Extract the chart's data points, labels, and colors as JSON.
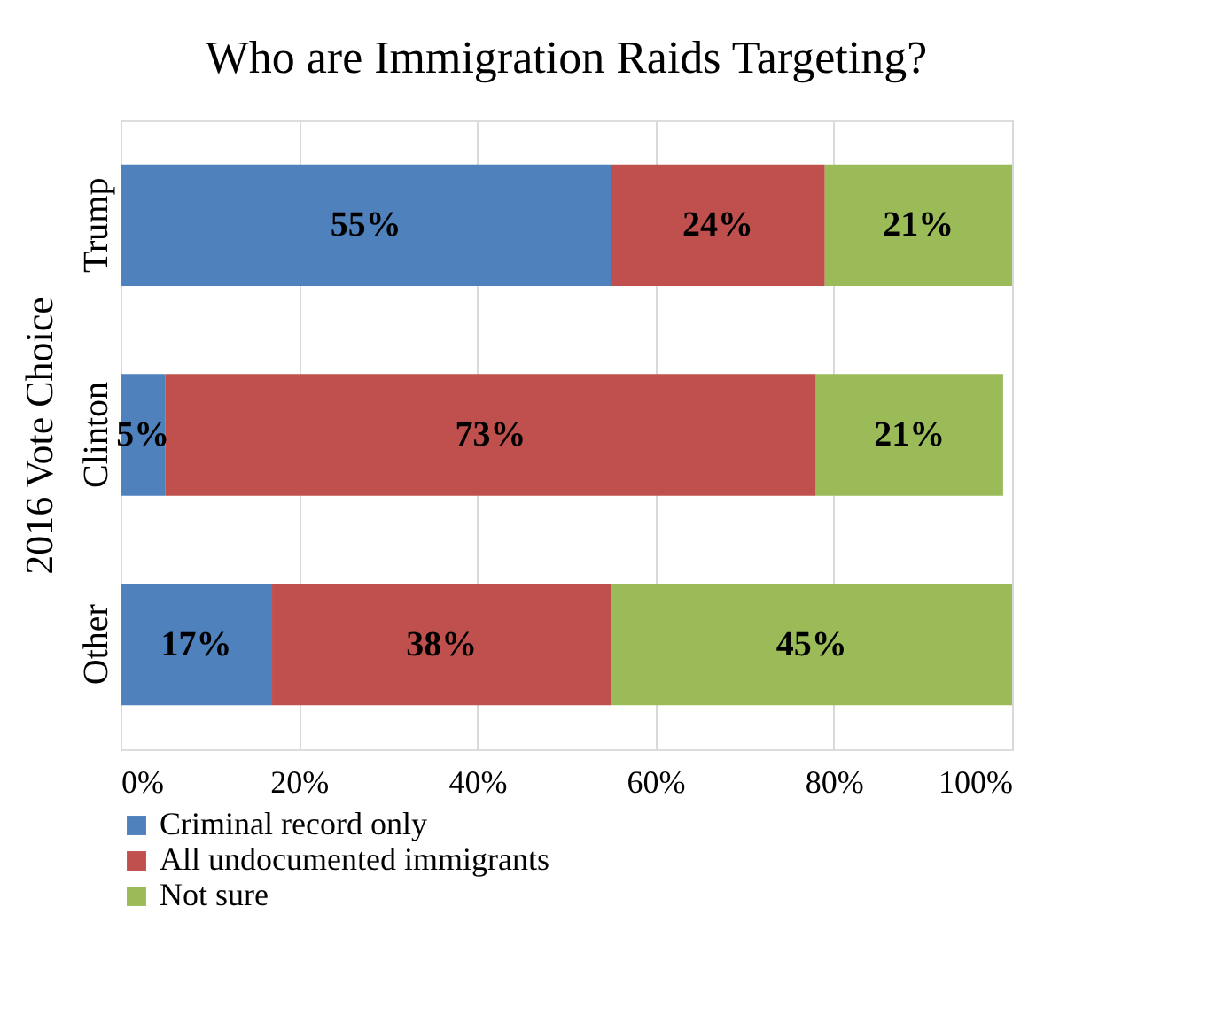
{
  "chart_data": {
    "type": "bar",
    "orientation": "horizontal",
    "stacked": true,
    "title": "Who are Immigration Raids Targeting?",
    "ylabel": "2016 Vote Choice",
    "categories": [
      "Trump",
      "Clinton",
      "Other"
    ],
    "series": [
      {
        "name": "Criminal record only",
        "color": "#4f81bd",
        "values": [
          55,
          5,
          17
        ],
        "value_labels": [
          "55%",
          "5%",
          "17%"
        ]
      },
      {
        "name": "All undocumented immigrants",
        "color": "#c0504d",
        "values": [
          24,
          73,
          38
        ],
        "value_labels": [
          "24%",
          "73%",
          "38%"
        ]
      },
      {
        "name": "Not sure",
        "color": "#9bbb59",
        "values": [
          21,
          21,
          45
        ],
        "value_labels": [
          "21%",
          "21%",
          "45%"
        ]
      }
    ],
    "xlim": [
      0,
      100
    ],
    "xticks": [
      {
        "value": 0,
        "label": "0%"
      },
      {
        "value": 20,
        "label": "20%"
      },
      {
        "value": 40,
        "label": "40%"
      },
      {
        "value": 60,
        "label": "60%"
      },
      {
        "value": 80,
        "label": "80%"
      },
      {
        "value": 100,
        "label": "100%"
      }
    ],
    "grid": "x",
    "legend": "bottom"
  }
}
